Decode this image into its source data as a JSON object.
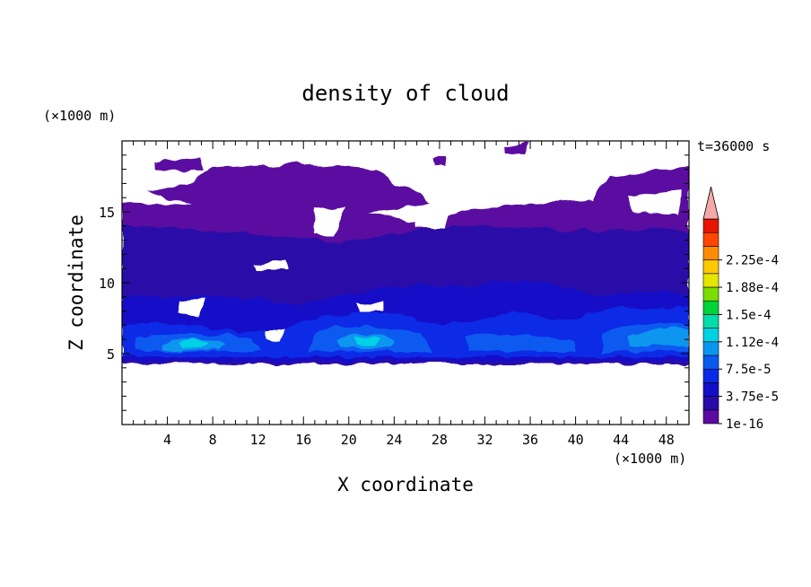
{
  "chart_data": {
    "type": "heatmap",
    "title": "density of cloud",
    "xlabel": "X coordinate",
    "ylabel": "Z coordinate",
    "x_unit": "(×1000 m)",
    "y_unit": "(×1000 m)",
    "time_label": "t=36000 s",
    "xlim": [
      0,
      50
    ],
    "ylim": [
      0,
      20
    ],
    "x_ticks": [
      4,
      8,
      12,
      16,
      20,
      24,
      28,
      32,
      36,
      40,
      44,
      48
    ],
    "y_ticks": [
      5,
      10,
      15
    ],
    "colorbar": {
      "levels": [
        1e-16,
        1.875e-05,
        3.75e-05,
        5.625e-05,
        7.5e-05,
        9.375e-05,
        0.000112,
        0.000131,
        0.00015,
        0.000169,
        0.000188,
        0.000206,
        0.000225,
        0.000244
      ],
      "labels": [
        "1e-16",
        "3.75e-5",
        "7.5e-5",
        "1.12e-4",
        "1.5e-4",
        "1.88e-4",
        "2.25e-4"
      ],
      "label_levels": [
        0,
        2,
        4,
        6,
        8,
        10,
        12
      ],
      "colors": [
        "#5a0aa0",
        "#2a0aa8",
        "#1410c8",
        "#0a2ae6",
        "#0a5af0",
        "#0a96f0",
        "#00d2e6",
        "#00dcaa",
        "#00d23c",
        "#7ddc00",
        "#e6e600",
        "#ffc800",
        "#ff8c00",
        "#ff4600",
        "#e61400"
      ],
      "over_color": "#f4a8a8"
    }
  }
}
